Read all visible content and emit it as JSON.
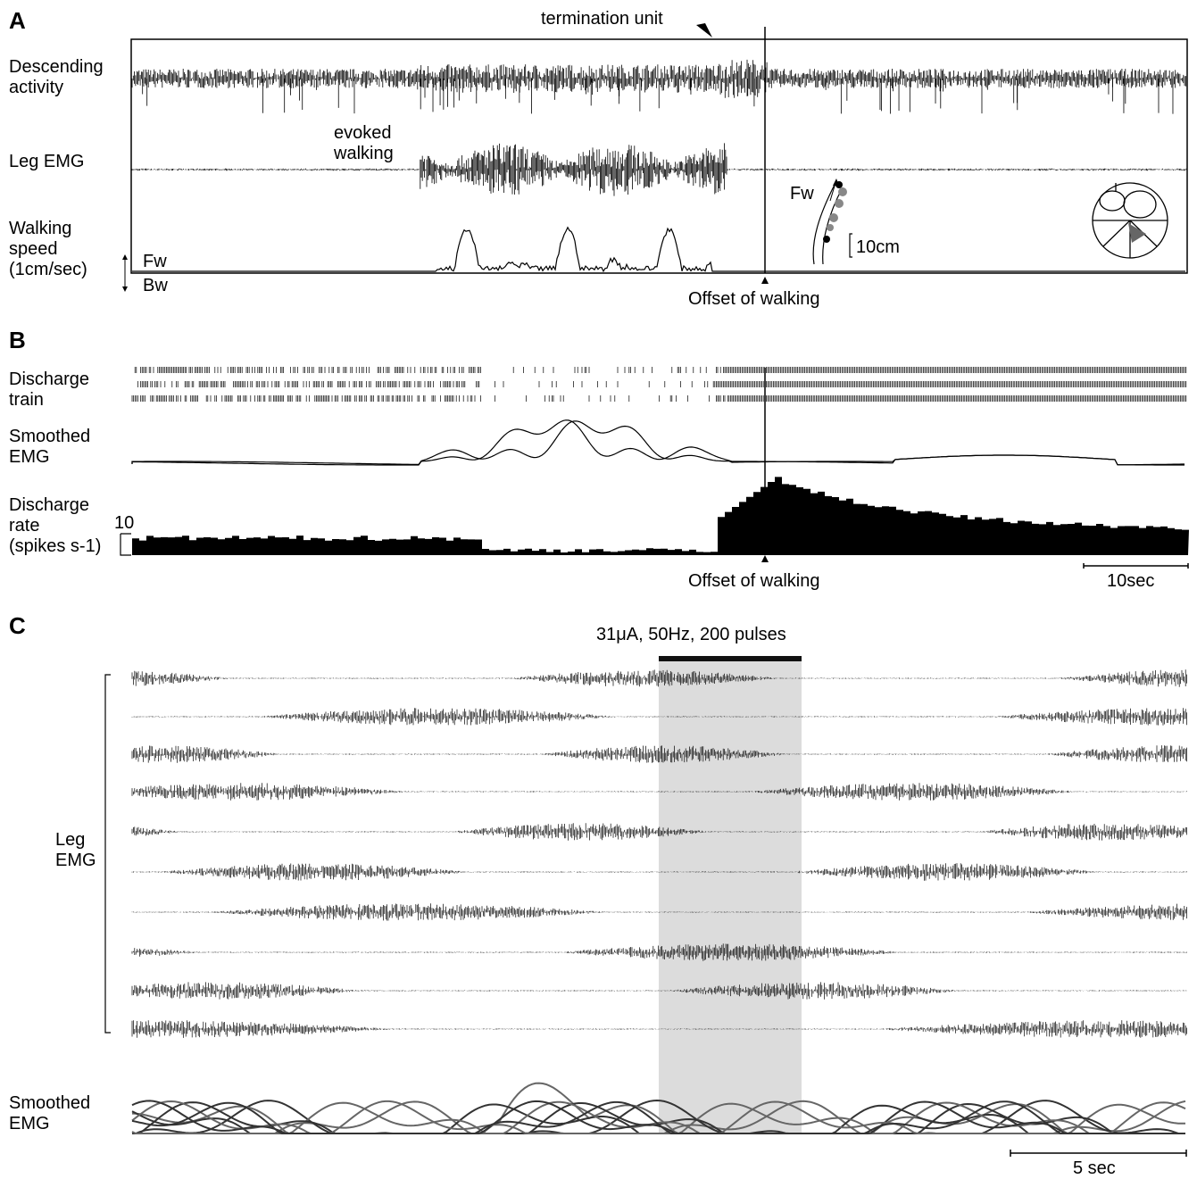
{
  "panel_a": {
    "letter": "A",
    "termination_label": "termination unit",
    "descending_label": [
      "Descending",
      "activity"
    ],
    "leg_emg_label": "Leg EMG",
    "evoked_label": [
      "evoked",
      "walking"
    ],
    "speed_label": [
      "Walking",
      "speed",
      "(1cm/sec)"
    ],
    "fw": "Fw",
    "bw": "Bw",
    "inset_fw": "Fw",
    "inset_scale": "10cm",
    "offset_label": "Offset of walking"
  },
  "panel_b": {
    "letter": "B",
    "discharge_train_label": [
      "Discharge",
      "train"
    ],
    "smoothed_label": [
      "Smoothed",
      "EMG"
    ],
    "rate_label": [
      "Discharge",
      "rate",
      "(spikes s-1)"
    ],
    "rate_scale": "10",
    "offset_label": "Offset of walking",
    "time_scale": "10sec"
  },
  "panel_c": {
    "letter": "C",
    "stim_label": "31μA, 50Hz, 200 pulses",
    "leg_emg_label": [
      "Leg",
      "EMG"
    ],
    "smoothed_label": [
      "Smoothed",
      "EMG"
    ],
    "time_scale": "5 sec",
    "emg_traces": 10
  },
  "colors": {
    "ink": "#000000",
    "stim_shade": "#dcdcdc",
    "smoothed_gray": "#555555"
  }
}
